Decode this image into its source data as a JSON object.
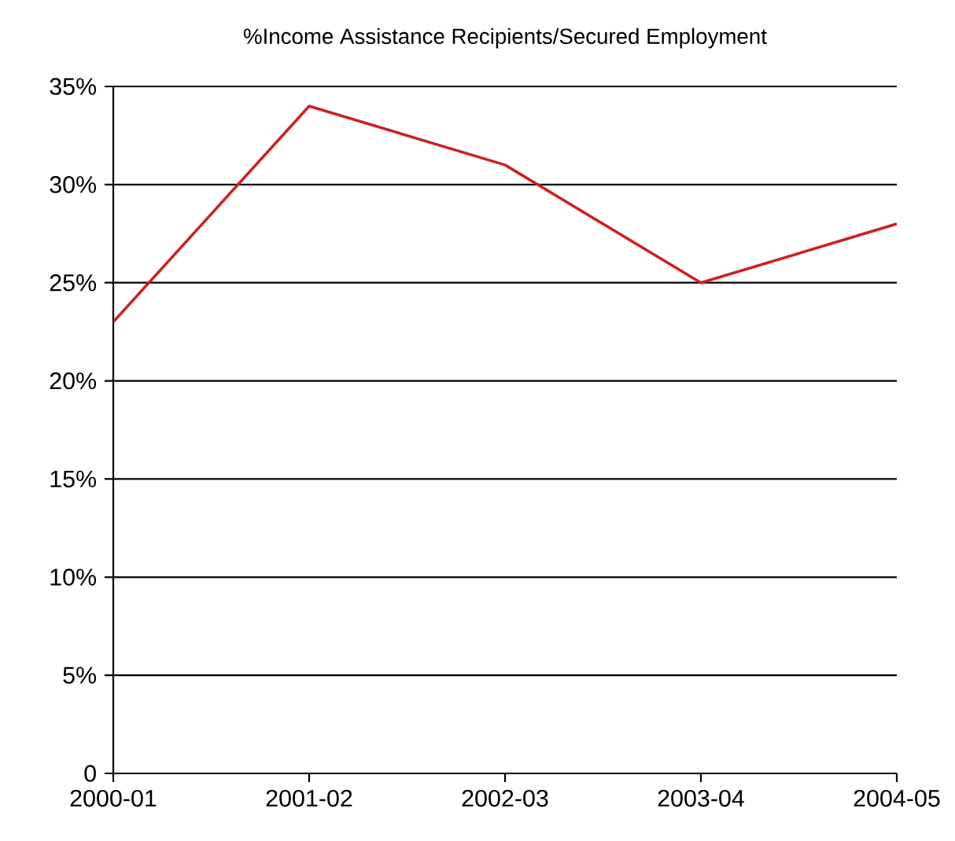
{
  "chart_data": {
    "type": "line",
    "title": "%Income Assistance Recipients/Secured Employment",
    "categories": [
      "2000-01",
      "2001-02",
      "2002-03",
      "2003-04",
      "2004-05"
    ],
    "series": [
      {
        "color": "#cc2222",
        "values": [
          23,
          34,
          31,
          25,
          28
        ]
      }
    ],
    "ylim": [
      0,
      35
    ],
    "yticks": [
      0,
      {
        "value": 5,
        "label": "5%"
      },
      {
        "value": 10,
        "label": "10%"
      },
      {
        "value": 15,
        "label": "15%"
      },
      {
        "value": 20,
        "label": "20%"
      },
      {
        "value": 25,
        "label": "25%"
      },
      {
        "value": 30,
        "label": "30%"
      },
      {
        "value": 35,
        "label": "35%"
      }
    ],
    "grid": "y",
    "marker": "none",
    "line_style": "solid"
  }
}
